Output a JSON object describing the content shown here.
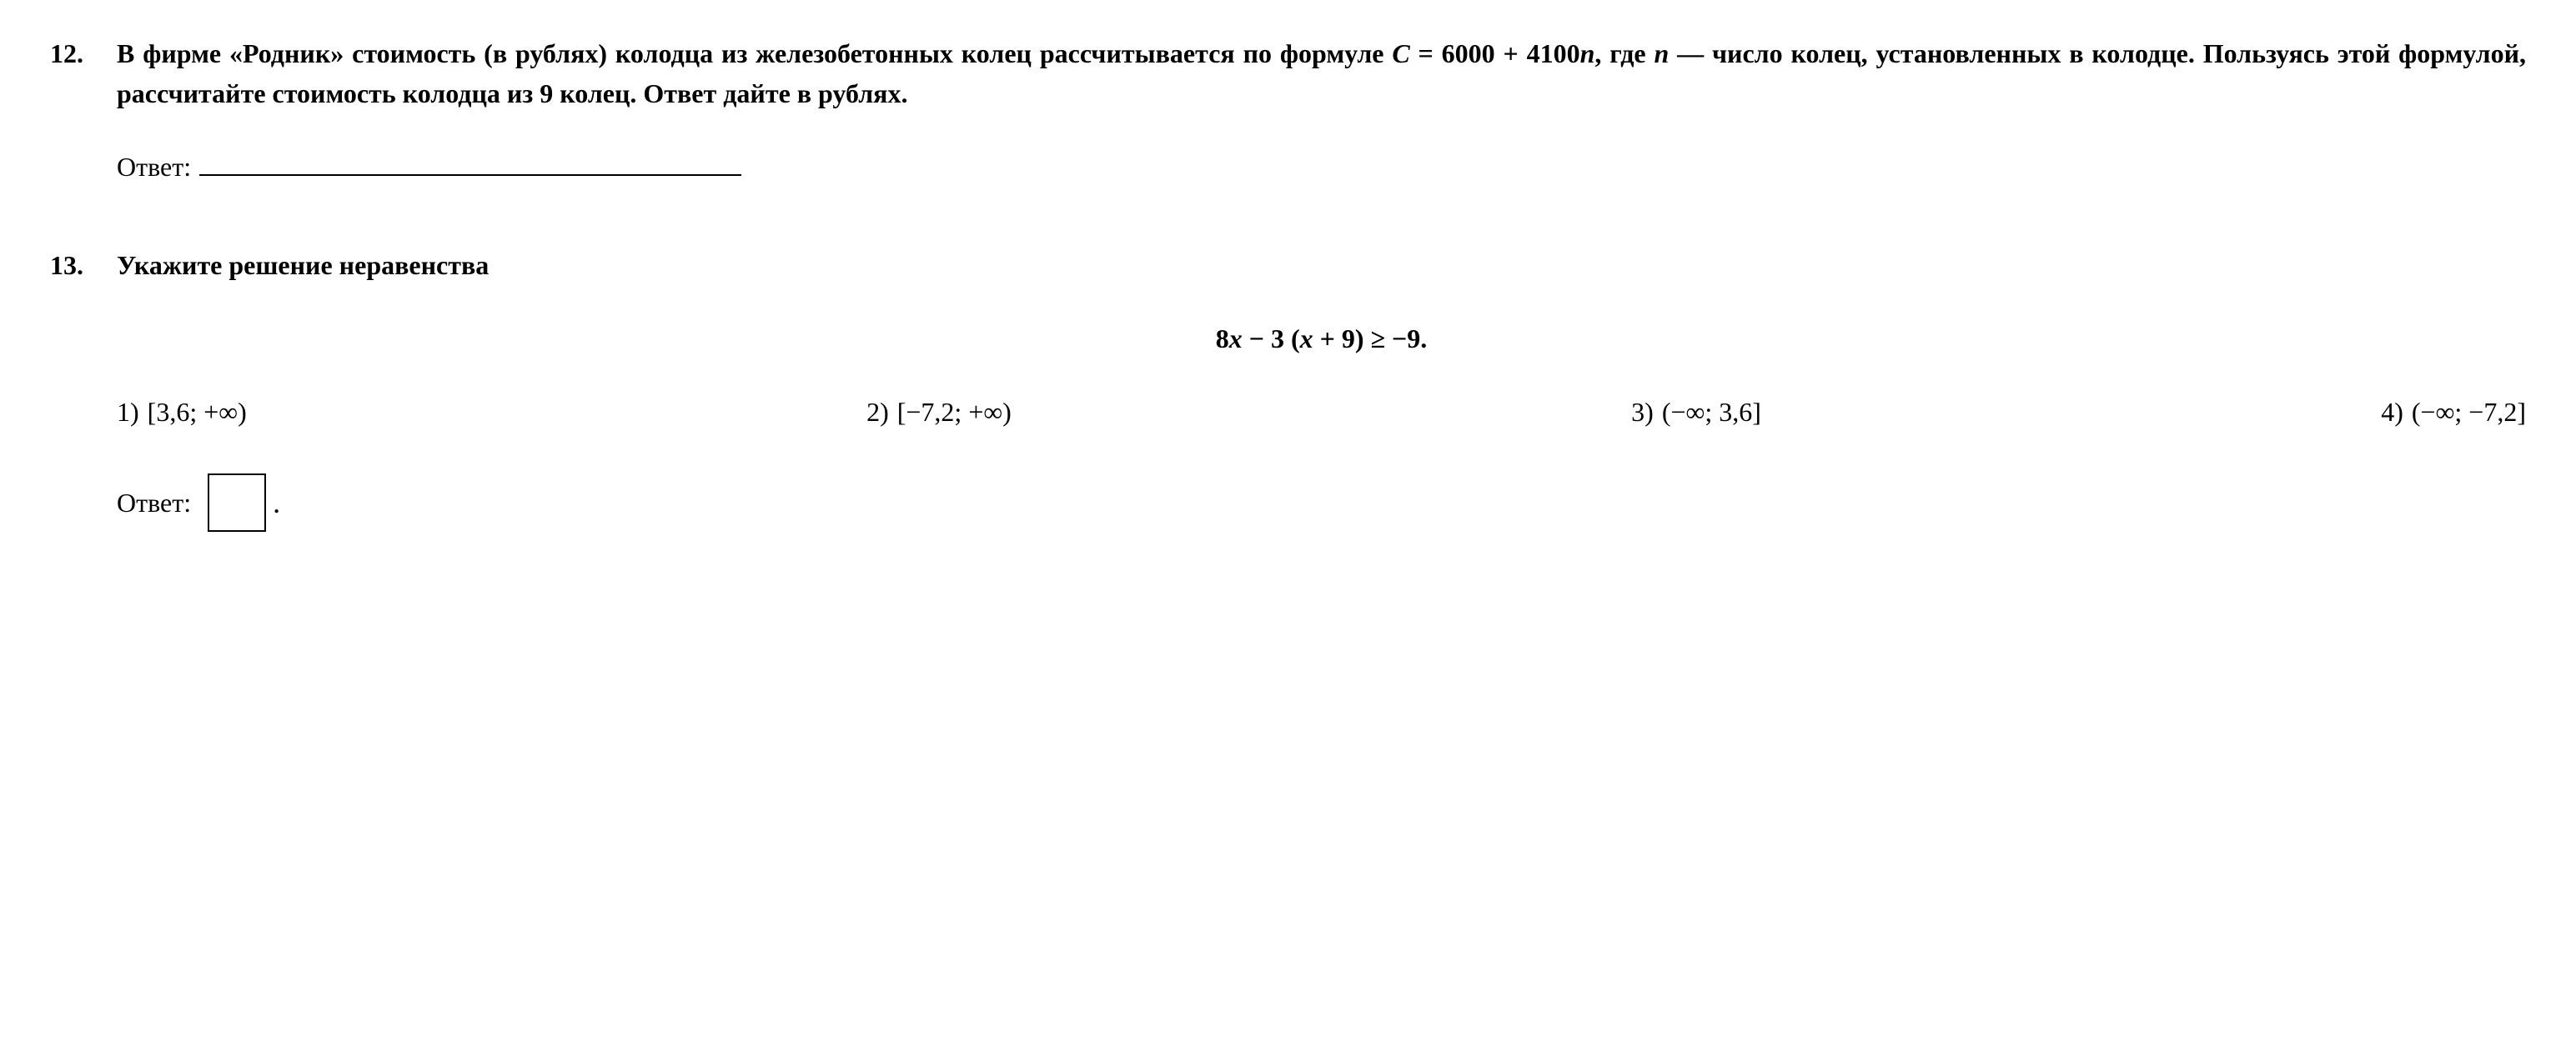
{
  "problems": [
    {
      "number": "12.",
      "text_parts": {
        "p1": "В фирме «Родник» стоимость (в рублях) колодца из железобетонных колец рассчитывается по формуле ",
        "formula_c": "C",
        "formula_eq": " = 6000 + 4100",
        "formula_n": "n",
        "p2": ", где ",
        "var_n": "n",
        "p3": " — число колец, установленных в колодце. Пользуясь этой формулой, рассчитайте стоимость колодца из 9 колец. Ответ дайте в рублях."
      },
      "answer_label": "Ответ:"
    },
    {
      "number": "13.",
      "title": "Укажите решение неравенства",
      "formula": {
        "p1": "8",
        "x1": "x",
        "p2": " − 3 (",
        "x2": "x",
        "p3": " + 9) ≥ −9."
      },
      "options": [
        {
          "num": "1)",
          "text": "[3,6; +∞)"
        },
        {
          "num": "2)",
          "text": "[−7,2; +∞)"
        },
        {
          "num": "3)",
          "text": "(−∞; 3,6]"
        },
        {
          "num": "4)",
          "text": "(−∞; −7,2]"
        }
      ],
      "answer_label": "Ответ:"
    }
  ]
}
